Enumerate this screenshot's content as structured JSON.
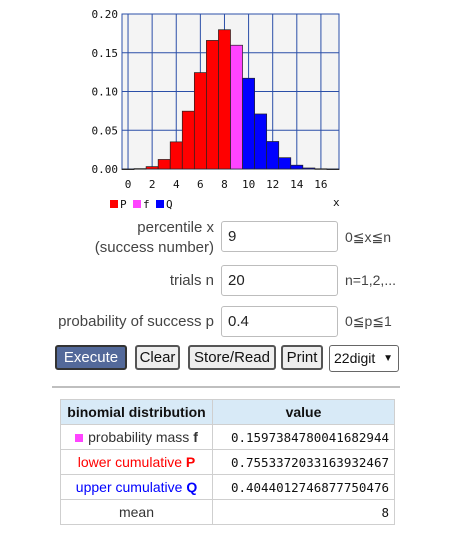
{
  "chart_data": {
    "type": "bar",
    "x": [
      0,
      1,
      2,
      3,
      4,
      5,
      6,
      7,
      8,
      9,
      10,
      11,
      12,
      13,
      14,
      15,
      16,
      17,
      18,
      19,
      20
    ],
    "values": [
      0.0,
      0.0005,
      0.0031,
      0.0123,
      0.035,
      0.0746,
      0.1244,
      0.1659,
      0.1797,
      0.1597,
      0.1171,
      0.071,
      0.0355,
      0.0146,
      0.0049,
      0.0013,
      0.0003,
      0.0,
      0.0,
      0.0,
      0.0
    ],
    "x_ticks": [
      "0",
      "2",
      "4",
      "6",
      "8",
      "10",
      "12",
      "14",
      "16"
    ],
    "y_ticks": [
      "0.00",
      "0.05",
      "0.10",
      "0.15",
      "0.20"
    ],
    "ylim": [
      0,
      0.2
    ],
    "xlabel": "x",
    "percentile": 9,
    "legend": [
      {
        "name": "P",
        "color": "#ff0000"
      },
      {
        "name": "f",
        "color": "#ff44ff"
      },
      {
        "name": "Q",
        "color": "#0000ff"
      }
    ]
  },
  "form": {
    "percentile_label_1": "percentile x",
    "percentile_label_2": "(success number)",
    "percentile_value": "9",
    "percentile_hint": "0≦x≦n",
    "trials_label": "trials n",
    "trials_value": "20",
    "trials_hint": "n=1,2,...",
    "prob_label": "probability of success p",
    "prob_value": "0.4",
    "prob_hint": "0≦p≦1"
  },
  "buttons": {
    "execute": "Execute",
    "clear": "Clear",
    "store": "Store/Read",
    "print": "Print",
    "digits": "22digit"
  },
  "results": {
    "col1": "binomial distribution",
    "col2": "value",
    "pmf_label": "probability mass",
    "pmf_sym": "f",
    "pmf_value": "0.1597384780041682944",
    "lower_label": "lower cumulative",
    "lower_sym": "P",
    "lower_value": "0.7553372033163932467",
    "upper_label": "upper cumulative",
    "upper_sym": "Q",
    "upper_value": "0.4044012746877750476",
    "mean_label": "mean",
    "mean_value": "8"
  },
  "colors": {
    "P": "#ff0000",
    "f": "#ff44ff",
    "Q": "#0000ff",
    "header": "#d8eaf7"
  }
}
